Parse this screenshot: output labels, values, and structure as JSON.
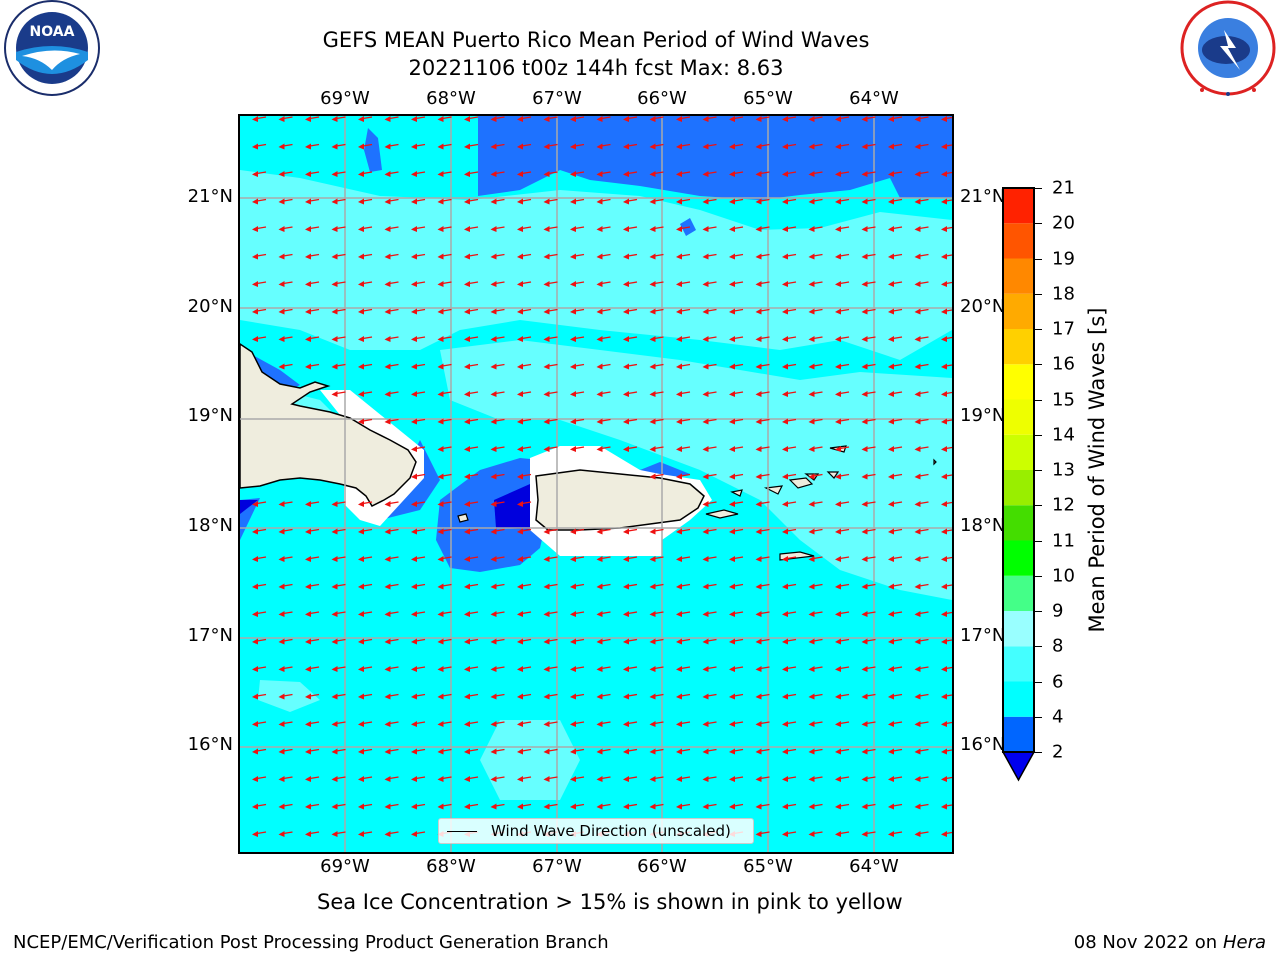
{
  "title_line1": "GEFS MEAN Puerto Rico Mean Period of Wind Waves",
  "title_line2": "20221106 t00z 144h fcst   Max: 8.63",
  "lon_labels": [
    "69°W",
    "68°W",
    "67°W",
    "66°W",
    "65°W",
    "64°W"
  ],
  "lat_labels": [
    "21°N",
    "20°N",
    "19°N",
    "18°N",
    "17°N",
    "16°N"
  ],
  "legend_label": "Wind Wave Direction (unscaled)",
  "colorbar": {
    "label": "Mean Period of Wind Waves [s]",
    "ticks": [
      "2",
      "4",
      "6",
      "8",
      "9",
      "10",
      "11",
      "12",
      "13",
      "14",
      "15",
      "16",
      "17",
      "18",
      "19",
      "20",
      "21"
    ],
    "colors": [
      "#0000ee",
      "#0066ff",
      "#00ffff",
      "#44ffff",
      "#99ffff",
      "#44ff88",
      "#00ff00",
      "#44dd00",
      "#99ee00",
      "#ccff00",
      "#eeff00",
      "#ffff00",
      "#ffd000",
      "#ffaa00",
      "#ff8800",
      "#ff5500",
      "#ff2200",
      "#ff0000"
    ]
  },
  "ice_note": "Sea Ice Concentration > 15% is shown in pink to yellow",
  "footer_left": "NCEP/EMC/Verification Post Processing Product Generation Branch",
  "footer_date": "08 Nov 2022 on",
  "footer_machine": "Hera",
  "logos": {
    "left": "noaa-logo",
    "right": "national-weather-service-logo",
    "left_text": "NOAA"
  }
}
